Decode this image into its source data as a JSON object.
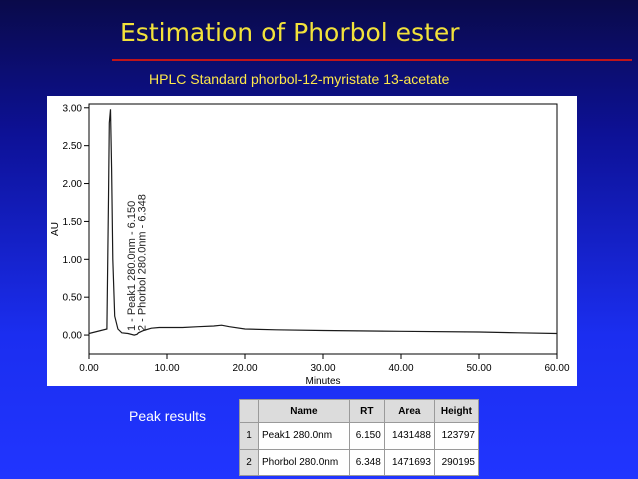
{
  "slide": {
    "title": "Estimation of Phorbol ester",
    "subtitle": "HPLC Standard  phorbol-12-myristate 13-acetate",
    "peak_results_label": "Peak results",
    "colors": {
      "background_top": "#0a0a4a",
      "background_bottom": "#2135ff",
      "title": "#f2e23a",
      "rule": "#c0141a",
      "trace": "#1a1a1a"
    }
  },
  "chart_data": {
    "type": "line",
    "xlabel": "Minutes",
    "ylabel": "AU",
    "xlim": [
      0,
      60
    ],
    "ylim": [
      -0.25,
      3.05
    ],
    "x_ticks": [
      "0.00",
      "10.00",
      "20.00",
      "30.00",
      "40.00",
      "50.00",
      "60.00"
    ],
    "y_ticks": [
      "0.00",
      "0.50",
      "1.00",
      "1.50",
      "2.00",
      "2.50",
      "3.00"
    ],
    "series": [
      {
        "x": [
          0,
          2.3,
          2.5,
          2.6,
          2.75,
          2.9,
          3.05,
          3.3,
          3.7,
          4.2,
          5.0,
          5.8,
          6.15,
          6.35,
          7.0,
          8.0,
          9.0,
          10.0,
          12.0,
          14.0,
          16.0,
          17.0,
          18.0,
          20.0,
          24.0,
          30.0,
          40.0,
          50.0,
          55.0,
          60.0
        ],
        "y": [
          0.02,
          0.08,
          1.8,
          2.8,
          2.98,
          2.2,
          1.0,
          0.25,
          0.08,
          0.03,
          0.02,
          0.0,
          0.01,
          0.03,
          0.06,
          0.09,
          0.1,
          0.1,
          0.1,
          0.11,
          0.12,
          0.13,
          0.11,
          0.08,
          0.07,
          0.06,
          0.05,
          0.04,
          0.03,
          0.02
        ]
      }
    ],
    "annotations": [
      {
        "text": "1 - Peak1 280.0nm - 6.150",
        "x": 6.15
      },
      {
        "text": "2 - Phorbol 280.0nm - 6.348",
        "x": 6.348
      }
    ],
    "grid": false
  },
  "table": {
    "headers": [
      "",
      "Name",
      "RT",
      "Area",
      "Height"
    ],
    "rows": [
      [
        "1",
        "Peak1 280.0nm",
        "6.150",
        "1431488",
        "123797"
      ],
      [
        "2",
        "Phorbol 280.0nm",
        "6.348",
        "1471693",
        "290195"
      ]
    ]
  }
}
